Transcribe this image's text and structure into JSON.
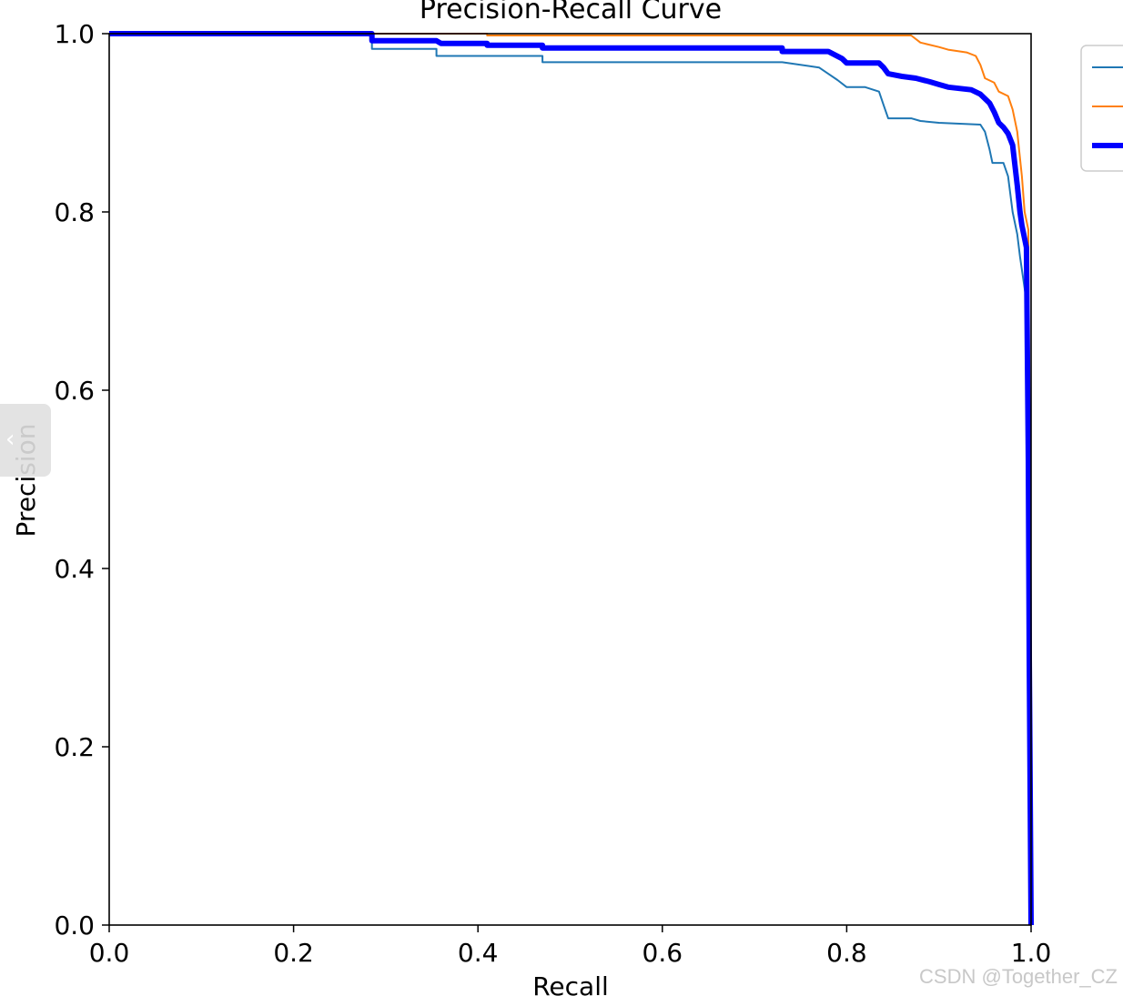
{
  "watermark": "CSDN @Together_CZ",
  "side_tab": {
    "icon": "chevron-left-icon",
    "glyph": "‹"
  },
  "chart_data": {
    "type": "line",
    "title": "Precision-Recall Curve",
    "xlabel": "Recall",
    "ylabel": "Precision",
    "xlim": [
      0.0,
      1.0
    ],
    "ylim": [
      0.0,
      1.0
    ],
    "xticks": [
      "0.0",
      "0.2",
      "0.4",
      "0.6",
      "0.8",
      "1.0"
    ],
    "yticks": [
      "0.0",
      "0.2",
      "0.4",
      "0.6",
      "0.8",
      "1.0"
    ],
    "grid": false,
    "legend": {
      "placement": "top-right"
    },
    "series": [
      {
        "color": "#1f77b4",
        "width": 2,
        "points": [
          [
            0,
            1
          ],
          [
            0.285,
            1
          ],
          [
            0.285,
            0.983
          ],
          [
            0.355,
            0.983
          ],
          [
            0.355,
            0.975
          ],
          [
            0.47,
            0.975
          ],
          [
            0.47,
            0.968
          ],
          [
            0.73,
            0.968
          ],
          [
            0.77,
            0.962
          ],
          [
            0.78,
            0.955
          ],
          [
            0.79,
            0.948
          ],
          [
            0.8,
            0.94
          ],
          [
            0.82,
            0.94
          ],
          [
            0.835,
            0.935
          ],
          [
            0.84,
            0.92
          ],
          [
            0.845,
            0.905
          ],
          [
            0.87,
            0.905
          ],
          [
            0.88,
            0.902
          ],
          [
            0.9,
            0.9
          ],
          [
            0.945,
            0.898
          ],
          [
            0.95,
            0.89
          ],
          [
            0.955,
            0.87
          ],
          [
            0.958,
            0.855
          ],
          [
            0.97,
            0.855
          ],
          [
            0.975,
            0.84
          ],
          [
            0.98,
            0.8
          ],
          [
            0.985,
            0.775
          ],
          [
            0.988,
            0.75
          ],
          [
            0.995,
            0.7
          ],
          [
            0.997,
            0.5
          ],
          [
            0.998,
            0.2
          ],
          [
            1.0,
            0
          ]
        ]
      },
      {
        "color": "#ff7f0e",
        "width": 2,
        "points": [
          [
            0,
            1
          ],
          [
            0.41,
            1
          ],
          [
            0.41,
            0.998
          ],
          [
            0.87,
            0.998
          ],
          [
            0.88,
            0.99
          ],
          [
            0.9,
            0.985
          ],
          [
            0.91,
            0.982
          ],
          [
            0.93,
            0.979
          ],
          [
            0.94,
            0.975
          ],
          [
            0.945,
            0.965
          ],
          [
            0.95,
            0.95
          ],
          [
            0.96,
            0.945
          ],
          [
            0.965,
            0.935
          ],
          [
            0.975,
            0.93
          ],
          [
            0.98,
            0.915
          ],
          [
            0.985,
            0.89
          ],
          [
            0.987,
            0.87
          ],
          [
            0.99,
            0.84
          ],
          [
            0.993,
            0.8
          ],
          [
            0.997,
            0.78
          ],
          [
            0.998,
            0.6
          ],
          [
            0.999,
            0.3
          ],
          [
            1.0,
            0
          ]
        ]
      },
      {
        "color": "#0000ff",
        "width": 6,
        "points": [
          [
            0,
            1
          ],
          [
            0.285,
            1
          ],
          [
            0.285,
            0.992
          ],
          [
            0.355,
            0.992
          ],
          [
            0.36,
            0.989
          ],
          [
            0.41,
            0.989
          ],
          [
            0.41,
            0.987
          ],
          [
            0.47,
            0.987
          ],
          [
            0.47,
            0.984
          ],
          [
            0.73,
            0.984
          ],
          [
            0.73,
            0.98
          ],
          [
            0.78,
            0.98
          ],
          [
            0.795,
            0.972
          ],
          [
            0.8,
            0.967
          ],
          [
            0.835,
            0.967
          ],
          [
            0.84,
            0.962
          ],
          [
            0.845,
            0.955
          ],
          [
            0.86,
            0.952
          ],
          [
            0.875,
            0.95
          ],
          [
            0.89,
            0.946
          ],
          [
            0.9,
            0.943
          ],
          [
            0.91,
            0.94
          ],
          [
            0.935,
            0.937
          ],
          [
            0.945,
            0.932
          ],
          [
            0.955,
            0.922
          ],
          [
            0.96,
            0.912
          ],
          [
            0.965,
            0.9
          ],
          [
            0.97,
            0.895
          ],
          [
            0.975,
            0.888
          ],
          [
            0.98,
            0.875
          ],
          [
            0.985,
            0.83
          ],
          [
            0.988,
            0.8
          ],
          [
            0.99,
            0.785
          ],
          [
            0.993,
            0.77
          ],
          [
            0.995,
            0.76
          ],
          [
            0.997,
            0.52
          ],
          [
            0.998,
            0.3
          ],
          [
            1.0,
            0
          ]
        ]
      }
    ]
  }
}
